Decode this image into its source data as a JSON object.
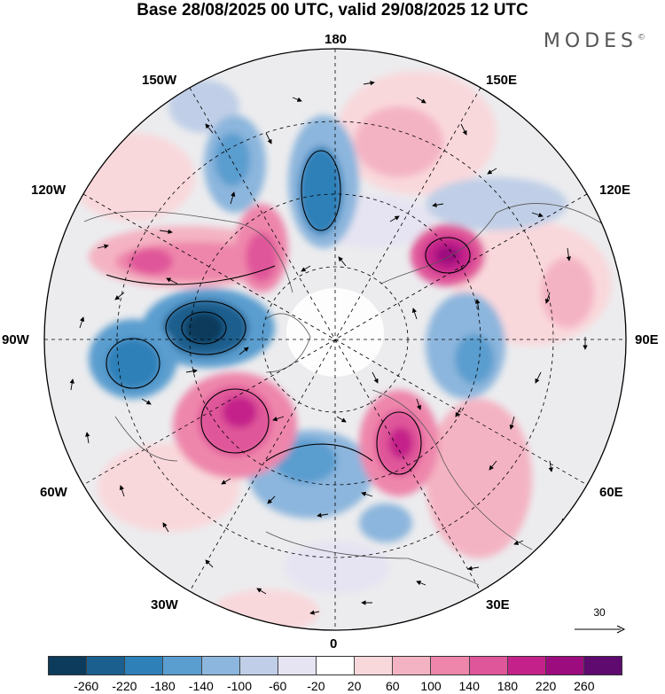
{
  "title": "Base 28/08/2025 00 UTC, valid 29/08/2025 12 UTC",
  "brand": "MODES",
  "brand_mark": "©",
  "longitude_labels": {
    "top": "180",
    "bottom": "0",
    "left": "90W",
    "right": "90E",
    "upper_left": "150W",
    "upper_right": "150E",
    "mid_left": "120W",
    "mid_right": "120E",
    "low_left": "60W",
    "low_right": "60E",
    "bottom_left": "30W",
    "bottom_right": "30E"
  },
  "wind_reference": {
    "value": "30"
  },
  "colorbar": {
    "colors": [
      "#0d3b5c",
      "#1a5f8e",
      "#2e80b8",
      "#5a9dcf",
      "#8cb6dd",
      "#c0cfe7",
      "#e6e4f2",
      "#ffffff",
      "#f9d8dc",
      "#f4b3c3",
      "#ee86ab",
      "#e0569a",
      "#c4228a",
      "#9c0c7f",
      "#5e0a6f"
    ],
    "ticks": [
      "-260",
      "-220",
      "-180",
      "-140",
      "-100",
      "-60",
      "-20",
      "20",
      "60",
      "100",
      "140",
      "180",
      "220",
      "260"
    ]
  }
}
